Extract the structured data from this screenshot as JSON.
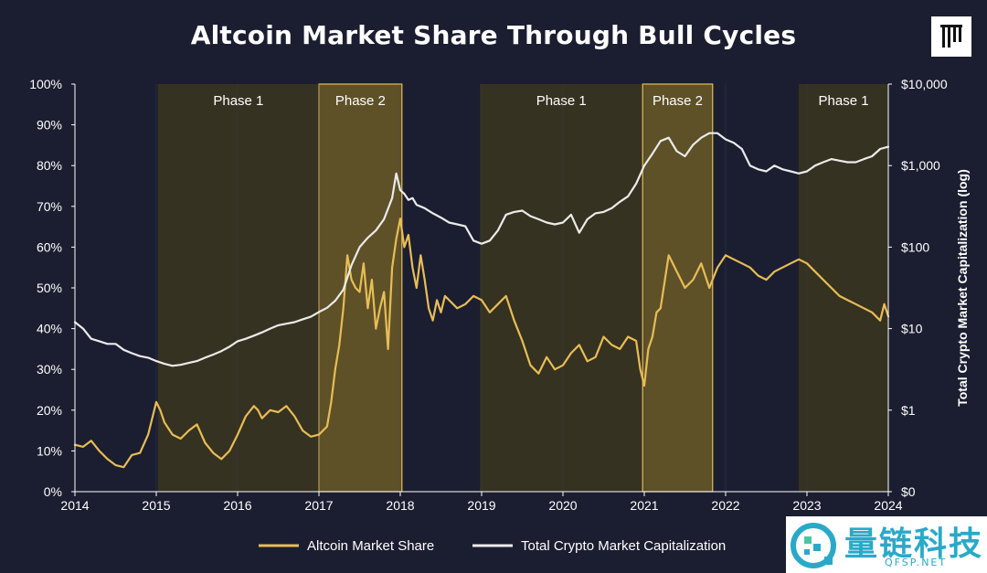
{
  "chart_data": {
    "type": "line",
    "title": "Altcoin Market Share Through Bull Cycles",
    "x_ticks": [
      "2014",
      "2015",
      "2016",
      "2017",
      "2018",
      "2019",
      "2020",
      "2021",
      "2022",
      "2023",
      "2024"
    ],
    "xlim": [
      2014,
      2024
    ],
    "y_left": {
      "ticks": [
        "0%",
        "10%",
        "20%",
        "30%",
        "40%",
        "50%",
        "60%",
        "70%",
        "80%",
        "90%",
        "100%"
      ],
      "ylim": [
        0,
        100
      ]
    },
    "y_right": {
      "label": "Total Crypto Market Capitalization (log)",
      "ticks": [
        "$0",
        "$1",
        "$10",
        "$100",
        "$1,000",
        "$10,000"
      ],
      "scale": "log"
    },
    "phases": [
      {
        "label": "Phase 1",
        "start": 2015.02,
        "end": 2017.0,
        "kind": "phase1"
      },
      {
        "label": "Phase 2",
        "start": 2017.0,
        "end": 2018.02,
        "kind": "phase2"
      },
      {
        "label": "Phase 1",
        "start": 2018.98,
        "end": 2020.98,
        "kind": "phase1"
      },
      {
        "label": "Phase 2",
        "start": 2020.98,
        "end": 2021.84,
        "kind": "phase2"
      },
      {
        "label": "Phase 1",
        "start": 2022.9,
        "end": 2024.0,
        "kind": "phase1"
      }
    ],
    "series": [
      {
        "name": "Altcoin Market Share",
        "color": "#e8bd56",
        "axis": "left",
        "x": [
          2014.0,
          2014.1,
          2014.2,
          2014.3,
          2014.4,
          2014.5,
          2014.6,
          2014.7,
          2014.8,
          2014.9,
          2015.0,
          2015.05,
          2015.1,
          2015.2,
          2015.3,
          2015.4,
          2015.5,
          2015.6,
          2015.7,
          2015.8,
          2015.9,
          2016.0,
          2016.1,
          2016.2,
          2016.25,
          2016.3,
          2016.4,
          2016.5,
          2016.6,
          2016.7,
          2016.8,
          2016.9,
          2017.0,
          2017.1,
          2017.15,
          2017.2,
          2017.25,
          2017.3,
          2017.35,
          2017.4,
          2017.45,
          2017.5,
          2017.55,
          2017.6,
          2017.65,
          2017.7,
          2017.75,
          2017.8,
          2017.85,
          2017.9,
          2017.95,
          2018.0,
          2018.05,
          2018.1,
          2018.15,
          2018.2,
          2018.25,
          2018.3,
          2018.35,
          2018.4,
          2018.45,
          2018.5,
          2018.55,
          2018.6,
          2018.7,
          2018.8,
          2018.9,
          2019.0,
          2019.1,
          2019.2,
          2019.3,
          2019.4,
          2019.5,
          2019.6,
          2019.7,
          2019.8,
          2019.9,
          2020.0,
          2020.1,
          2020.2,
          2020.3,
          2020.4,
          2020.5,
          2020.6,
          2020.7,
          2020.8,
          2020.9,
          2020.95,
          2021.0,
          2021.05,
          2021.1,
          2021.15,
          2021.2,
          2021.3,
          2021.4,
          2021.5,
          2021.6,
          2021.7,
          2021.8,
          2021.9,
          2022.0,
          2022.1,
          2022.2,
          2022.3,
          2022.4,
          2022.5,
          2022.6,
          2022.7,
          2022.8,
          2022.9,
          2023.0,
          2023.1,
          2023.2,
          2023.3,
          2023.4,
          2023.5,
          2023.6,
          2023.7,
          2023.8,
          2023.9,
          2023.95,
          2024.0
        ],
        "values": [
          11.5,
          11.0,
          12.5,
          10.0,
          8.0,
          6.5,
          6.0,
          9.0,
          9.5,
          14.0,
          22.0,
          20.0,
          17.0,
          14.0,
          13.0,
          15.0,
          16.5,
          12.0,
          9.5,
          8.0,
          10.0,
          14.0,
          18.5,
          21.0,
          20.0,
          18.0,
          20.0,
          19.5,
          21.0,
          18.5,
          15.0,
          13.5,
          14.0,
          16.0,
          22.0,
          30.0,
          36.0,
          45.0,
          58.0,
          52.0,
          50.0,
          49.0,
          56.0,
          45.0,
          52.0,
          40.0,
          45.0,
          49.0,
          35.0,
          55.0,
          62.0,
          67.0,
          60.0,
          63.0,
          55.0,
          50.0,
          58.0,
          52.0,
          45.0,
          42.0,
          47.0,
          44.0,
          48.0,
          47.0,
          45.0,
          46.0,
          48.0,
          47.0,
          44.0,
          46.0,
          48.0,
          42.0,
          37.0,
          31.0,
          29.0,
          33.0,
          30.0,
          31.0,
          34.0,
          36.0,
          32.0,
          33.0,
          38.0,
          36.0,
          35.0,
          38.0,
          37.0,
          30.0,
          26.0,
          35.0,
          38.0,
          44.0,
          45.0,
          58.0,
          54.0,
          50.0,
          52.0,
          56.0,
          50.0,
          55.0,
          58.0,
          57.0,
          56.0,
          55.0,
          53.0,
          52.0,
          54.0,
          55.0,
          56.0,
          57.0,
          56.0,
          54.0,
          52.0,
          50.0,
          48.0,
          47.0,
          46.0,
          45.0,
          44.0,
          42.0,
          46.0,
          43.0
        ]
      },
      {
        "name": "Total Crypto Market Capitalization",
        "color": "#ebebeb",
        "axis": "right",
        "x": [
          2014.0,
          2014.1,
          2014.2,
          2014.3,
          2014.4,
          2014.5,
          2014.6,
          2014.7,
          2014.8,
          2014.9,
          2015.0,
          2015.1,
          2015.2,
          2015.3,
          2015.4,
          2015.5,
          2015.6,
          2015.7,
          2015.8,
          2015.9,
          2016.0,
          2016.1,
          2016.2,
          2016.3,
          2016.4,
          2016.5,
          2016.6,
          2016.7,
          2016.8,
          2016.9,
          2017.0,
          2017.1,
          2017.2,
          2017.3,
          2017.4,
          2017.5,
          2017.6,
          2017.7,
          2017.8,
          2017.9,
          2017.95,
          2018.0,
          2018.05,
          2018.1,
          2018.15,
          2018.2,
          2018.3,
          2018.4,
          2018.5,
          2018.6,
          2018.7,
          2018.8,
          2018.9,
          2019.0,
          2019.1,
          2019.2,
          2019.3,
          2019.4,
          2019.5,
          2019.6,
          2019.7,
          2019.8,
          2019.9,
          2020.0,
          2020.1,
          2020.2,
          2020.3,
          2020.4,
          2020.5,
          2020.6,
          2020.7,
          2020.8,
          2020.9,
          2021.0,
          2021.1,
          2021.2,
          2021.3,
          2021.4,
          2021.5,
          2021.6,
          2021.7,
          2021.8,
          2021.9,
          2022.0,
          2022.1,
          2022.2,
          2022.3,
          2022.4,
          2022.5,
          2022.6,
          2022.7,
          2022.8,
          2022.9,
          2023.0,
          2023.1,
          2023.2,
          2023.3,
          2023.4,
          2023.5,
          2023.6,
          2023.7,
          2023.8,
          2023.9,
          2024.0
        ],
        "values": [
          12,
          10,
          7.5,
          7,
          6.5,
          6.5,
          5.5,
          5,
          4.6,
          4.4,
          4,
          3.7,
          3.5,
          3.6,
          3.8,
          4.0,
          4.4,
          4.8,
          5.3,
          6.0,
          7.0,
          7.5,
          8.2,
          9.0,
          10.0,
          11.0,
          11.5,
          12.0,
          13.0,
          14.0,
          16.0,
          18.0,
          22.0,
          30.0,
          60.0,
          100.0,
          130.0,
          160.0,
          220.0,
          400.0,
          800.0,
          500.0,
          450.0,
          380.0,
          400.0,
          330.0,
          300.0,
          260.0,
          230.0,
          200.0,
          190.0,
          180.0,
          120.0,
          110.0,
          120.0,
          160.0,
          250.0,
          270.0,
          280.0,
          240.0,
          220.0,
          200.0,
          190.0,
          200.0,
          250.0,
          150.0,
          220.0,
          260.0,
          270.0,
          300.0,
          360.0,
          420.0,
          600.0,
          1000.0,
          1400.0,
          2000.0,
          2200.0,
          1500.0,
          1300.0,
          1800.0,
          2200.0,
          2500.0,
          2500.0,
          2100.0,
          1900.0,
          1600.0,
          1000.0,
          900.0,
          850.0,
          1000.0,
          900.0,
          850.0,
          800.0,
          850.0,
          1000.0,
          1100.0,
          1200.0,
          1150.0,
          1100.0,
          1100.0,
          1200.0,
          1300.0,
          1600.0,
          1700.0
        ]
      }
    ],
    "legend": {
      "position": "bottom-center",
      "entries": [
        "Altcoin Market Share",
        "Total Crypto Market Capitalization"
      ]
    }
  },
  "watermark": {
    "text": "量链科技",
    "sub": "QFSP.NET"
  },
  "colors": {
    "background": "#1b1e30",
    "phase1_fill": "#3a3420",
    "phase2_fill": "#6a5a26",
    "phase2_border": "#e8bd56",
    "grid": "#3a3d55"
  }
}
